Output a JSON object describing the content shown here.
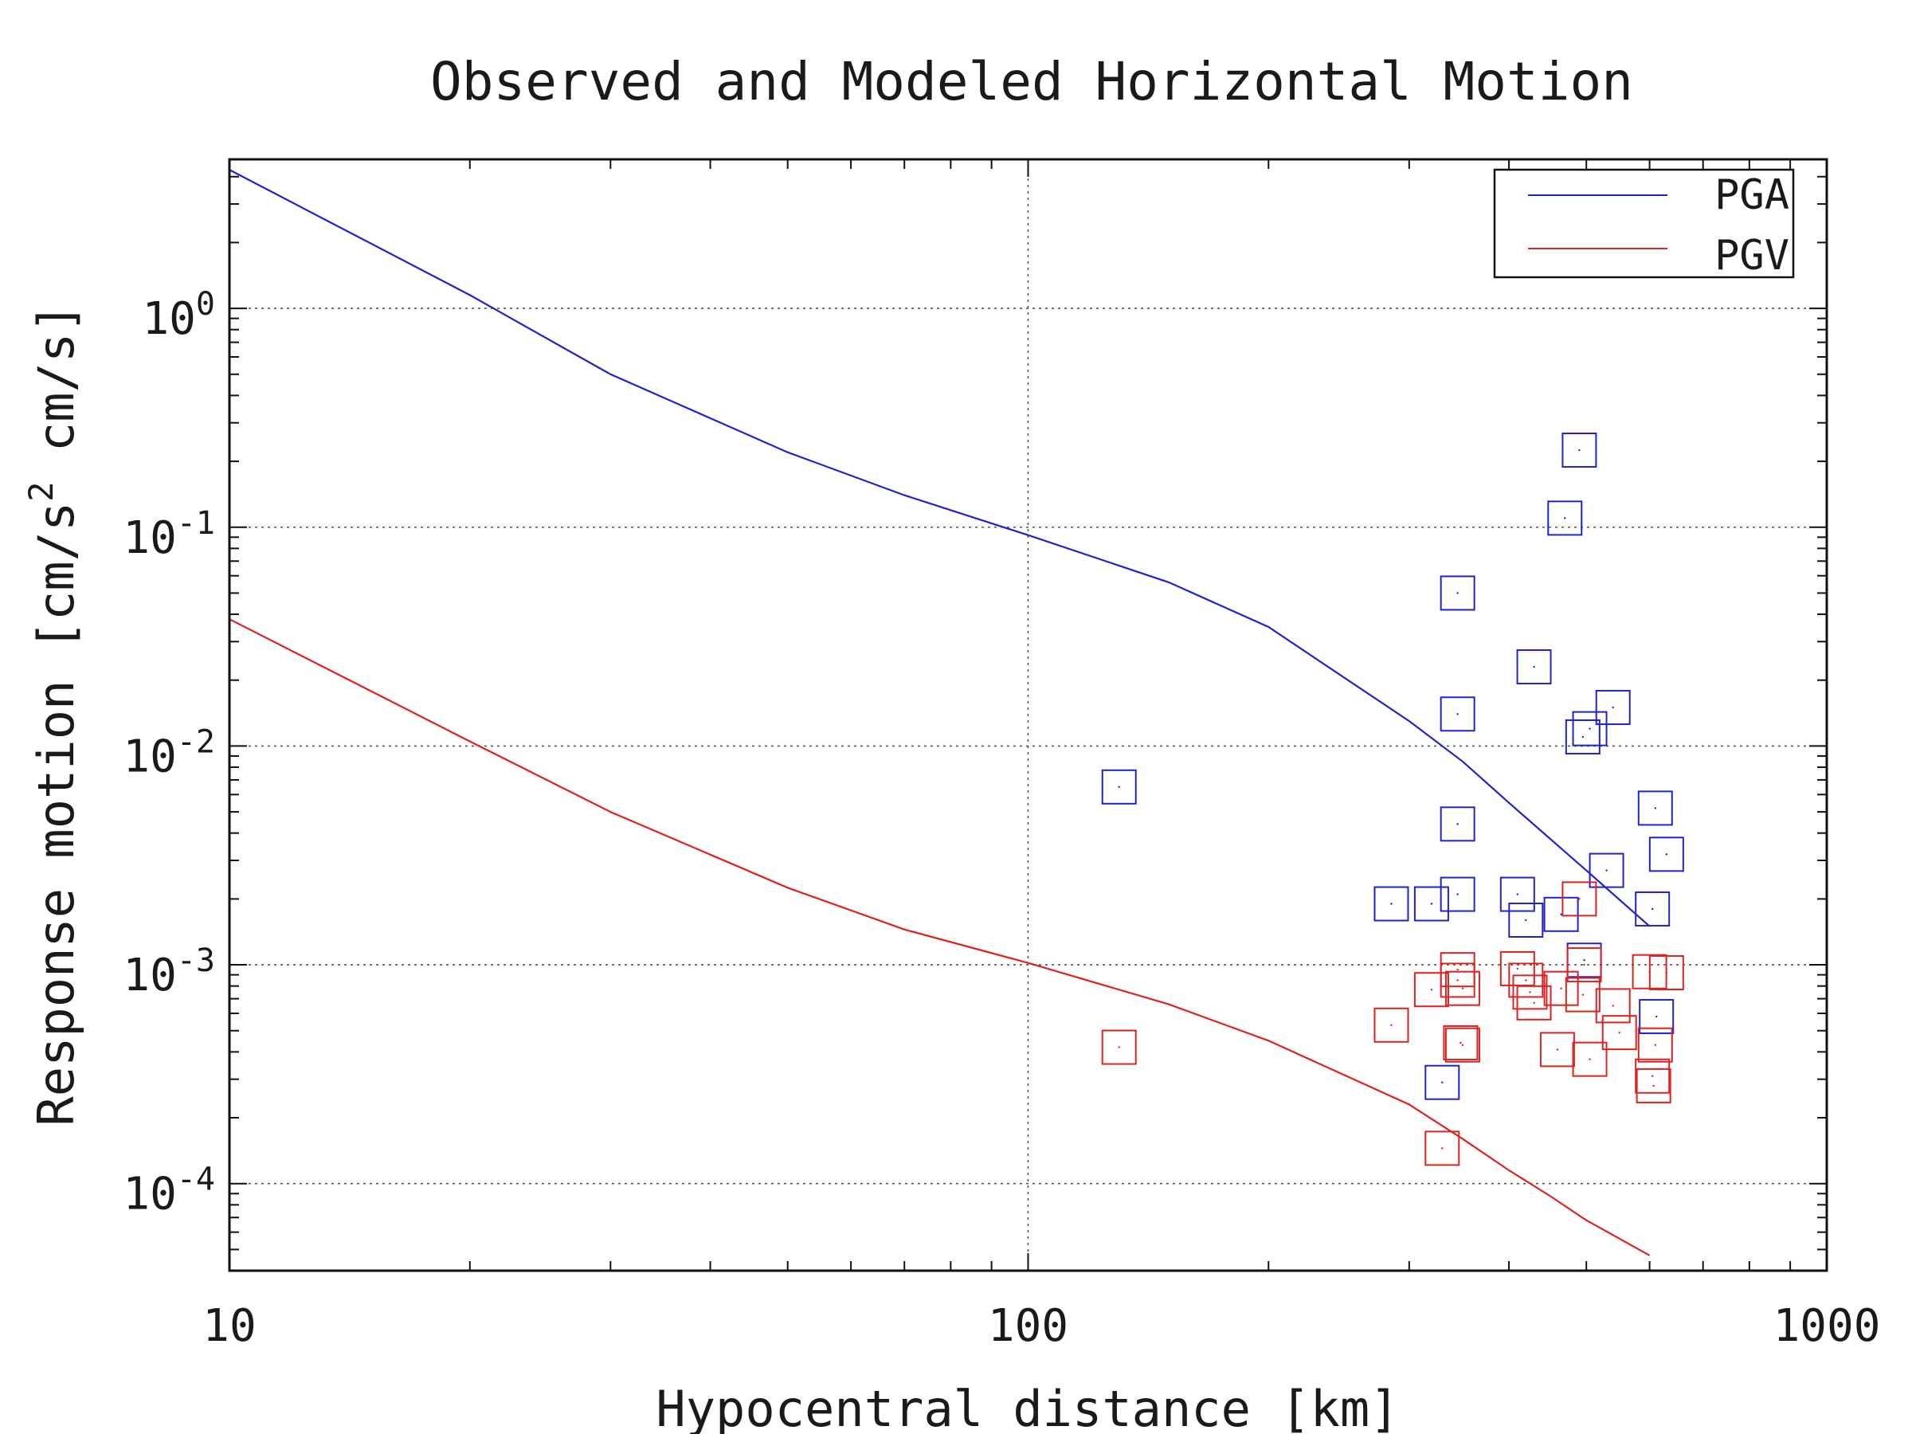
{
  "chart_data": {
    "type": "scatter",
    "title": "Observed and Modeled Horizontal Motion",
    "xlabel": "Hypocentral distance [km]",
    "ylabel": "Response motion [cm/s² cm/s]",
    "ylabel_parts": {
      "pre": "Response motion [cm/s",
      "sup": "2",
      "post": " cm/s]"
    },
    "xscale": "log",
    "yscale": "log",
    "xlim": [
      10,
      1000
    ],
    "ylim": [
      4e-05,
      4.8
    ],
    "xticks": [
      {
        "value": 10,
        "label": "10"
      },
      {
        "value": 100,
        "label": "100"
      },
      {
        "value": 1000,
        "label": "1000"
      }
    ],
    "yticks": [
      {
        "value": 1,
        "base": "10",
        "exp": "0"
      },
      {
        "value": 0.1,
        "base": "10",
        "exp": "-1"
      },
      {
        "value": 0.01,
        "base": "10",
        "exp": "-2"
      },
      {
        "value": 0.001,
        "base": "10",
        "exp": "-3"
      },
      {
        "value": 0.0001,
        "base": "10",
        "exp": "-4"
      }
    ],
    "grid": true,
    "legend_position": "top-right",
    "series": [
      {
        "name": "PGA",
        "color": "#2222cc",
        "line": {
          "x": [
            10,
            20,
            30,
            50,
            70,
            100,
            150,
            200,
            300,
            350,
            400,
            500,
            600
          ],
          "y": [
            4.3,
            1.15,
            0.5,
            0.22,
            0.14,
            0.092,
            0.056,
            0.035,
            0.013,
            0.0085,
            0.0055,
            0.0027,
            0.0015
          ]
        },
        "observed": {
          "x": [
            130,
            285,
            320,
            330,
            345,
            345,
            345,
            345,
            410,
            420,
            430,
            470,
            465,
            490,
            495,
            497,
            505,
            530,
            540,
            605,
            610,
            612,
            630
          ],
          "y": [
            0.0065,
            0.0019,
            0.0019,
            0.00029,
            0.05,
            0.014,
            0.0044,
            0.0021,
            0.0021,
            0.0016,
            0.023,
            0.11,
            0.0017,
            0.225,
            0.011,
            0.00105,
            0.012,
            0.0027,
            0.015,
            0.0018,
            0.0052,
            0.00058,
            0.0032
          ]
        }
      },
      {
        "name": "PGV",
        "color": "#dd2222",
        "line": {
          "x": [
            10,
            20,
            30,
            50,
            70,
            100,
            150,
            200,
            300,
            350,
            400,
            450,
            500,
            600
          ],
          "y": [
            0.038,
            0.0105,
            0.005,
            0.00225,
            0.00145,
            0.00102,
            0.00066,
            0.00045,
            0.00023,
            0.00016,
            0.000115,
            8.8e-05,
            6.8e-05,
            4.7e-05
          ]
        },
        "observed": {
          "x": [
            130,
            285,
            320,
            330,
            345,
            345,
            348,
            350,
            350,
            410,
            420,
            425,
            430,
            460,
            465,
            490,
            495,
            497,
            505,
            540,
            550,
            600,
            605,
            607,
            610,
            630
          ],
          "y": [
            0.00042,
            0.00053,
            0.00077,
            0.000145,
            0.00095,
            0.00085,
            0.00044,
            0.00043,
            0.00078,
            0.00096,
            0.00085,
            0.00075,
            0.00067,
            0.00041,
            0.00078,
            0.002,
            0.00073,
            0.001,
            0.00037,
            0.00065,
            0.00049,
            0.00093,
            0.00031,
            0.00028,
            0.00043,
            0.00092
          ]
        }
      }
    ]
  }
}
